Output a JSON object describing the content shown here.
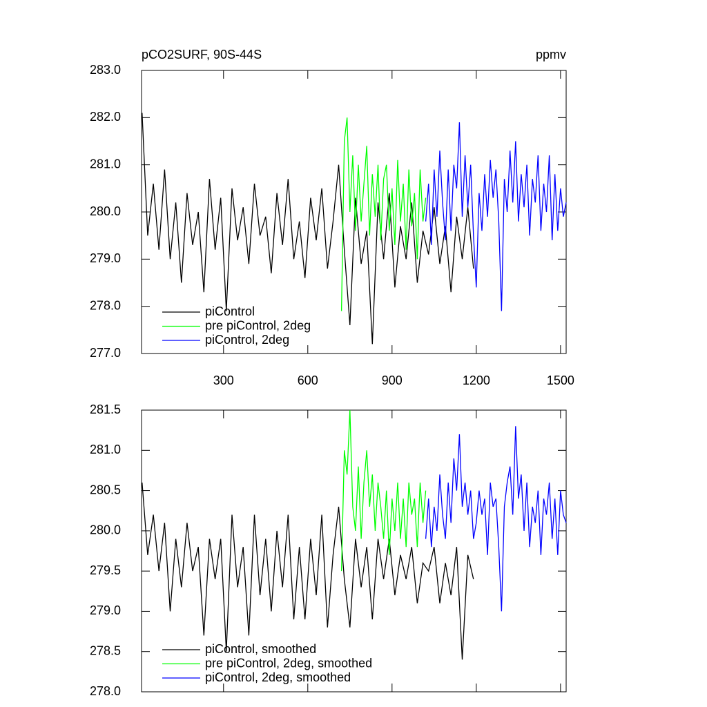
{
  "chart_data": [
    {
      "type": "line",
      "title": "pCO2SURF, 90S-44S",
      "units": "ppmv",
      "xlim": [
        8,
        1520
      ],
      "xticks": [
        300,
        600,
        900,
        1200,
        1500
      ],
      "show_xtick_labels": true,
      "ylim": [
        277,
        283
      ],
      "yticks": [
        {
          "value": 277,
          "label": "277.0"
        },
        {
          "value": 278,
          "label": "278.0"
        },
        {
          "value": 279,
          "label": "279.0"
        },
        {
          "value": 280,
          "label": "280.0"
        },
        {
          "value": 281,
          "label": "281.0"
        },
        {
          "value": 282,
          "label": "282.0"
        },
        {
          "value": 283,
          "label": "283.0"
        }
      ],
      "series": [
        {
          "name": "piControl",
          "color": "#000000",
          "x": [
            10,
            30,
            50,
            70,
            90,
            110,
            130,
            150,
            170,
            190,
            210,
            230,
            250,
            270,
            290,
            310,
            330,
            350,
            370,
            390,
            410,
            430,
            450,
            470,
            490,
            510,
            530,
            550,
            570,
            590,
            610,
            630,
            650,
            670,
            690,
            710,
            730,
            750,
            770,
            790,
            810,
            830,
            850,
            870,
            890,
            910,
            930,
            950,
            970,
            990,
            1010,
            1030,
            1050,
            1070,
            1090,
            1110,
            1130,
            1150,
            1170,
            1190
          ],
          "values": [
            282.1,
            279.5,
            280.6,
            279.2,
            280.9,
            279.0,
            280.2,
            278.5,
            280.4,
            279.3,
            280.0,
            278.3,
            280.7,
            279.2,
            280.3,
            277.9,
            280.5,
            279.4,
            280.1,
            278.9,
            280.6,
            279.5,
            279.9,
            278.7,
            280.4,
            279.3,
            280.7,
            279.0,
            279.8,
            278.6,
            280.3,
            279.4,
            280.5,
            278.8,
            279.8,
            281.0,
            279.2,
            277.6,
            280.3,
            278.9,
            279.6,
            277.2,
            280.2,
            279.0,
            280.4,
            278.4,
            279.7,
            279.0,
            280.2,
            278.5,
            279.6,
            279.1,
            280.1,
            278.9,
            279.7,
            278.3,
            279.9,
            279.0,
            280.1,
            278.8
          ]
        },
        {
          "name": "pre piControl, 2deg",
          "color": "#00ff00",
          "x": [
            720,
            730,
            740,
            750,
            760,
            770,
            780,
            790,
            800,
            810,
            820,
            830,
            840,
            850,
            860,
            870,
            880,
            890,
            900,
            910,
            920,
            930,
            940,
            950,
            960,
            970,
            980,
            990,
            1000,
            1010,
            1020
          ],
          "values": [
            277.9,
            281.5,
            282.0,
            280.0,
            281.2,
            279.6,
            281.0,
            279.8,
            280.6,
            281.4,
            279.5,
            280.8,
            279.9,
            281.0,
            279.4,
            280.7,
            281.0,
            279.6,
            280.5,
            279.3,
            281.1,
            279.8,
            280.6,
            279.2,
            280.9,
            279.7,
            280.4,
            279.0,
            280.9,
            279.8,
            280.3
          ]
        },
        {
          "name": "piControl, 2deg",
          "color": "#0000ff",
          "x": [
            1020,
            1030,
            1040,
            1050,
            1060,
            1070,
            1080,
            1090,
            1100,
            1110,
            1120,
            1130,
            1140,
            1150,
            1160,
            1170,
            1180,
            1190,
            1200,
            1210,
            1220,
            1230,
            1240,
            1250,
            1260,
            1270,
            1280,
            1290,
            1300,
            1310,
            1320,
            1330,
            1340,
            1350,
            1360,
            1370,
            1380,
            1390,
            1400,
            1410,
            1420,
            1430,
            1440,
            1450,
            1460,
            1470,
            1480,
            1490,
            1500,
            1510,
            1520
          ],
          "values": [
            279.8,
            280.6,
            279.3,
            280.9,
            279.9,
            281.3,
            280.2,
            279.4,
            280.9,
            279.6,
            281.0,
            280.5,
            281.9,
            279.9,
            281.2,
            280.1,
            281.0,
            279.5,
            278.4,
            280.4,
            279.6,
            280.8,
            279.9,
            281.1,
            280.3,
            280.9,
            279.8,
            277.9,
            280.7,
            280.0,
            281.3,
            280.2,
            281.5,
            279.8,
            280.8,
            280.1,
            281.0,
            279.5,
            280.7,
            280.2,
            281.2,
            279.6,
            280.6,
            280.0,
            281.2,
            279.4,
            280.8,
            279.6,
            280.5,
            279.9,
            280.2
          ]
        }
      ]
    },
    {
      "type": "line",
      "xlim": [
        8,
        1520
      ],
      "xticks": [
        300,
        600,
        900,
        1200,
        1500
      ],
      "show_xtick_labels": false,
      "ylim": [
        278,
        281.5
      ],
      "yticks": [
        {
          "value": 278,
          "label": "278.0"
        },
        278.5,
        {
          "value": 279,
          "label": "279.0"
        },
        279.5,
        {
          "value": 280,
          "label": "280.0"
        },
        280.5,
        {
          "value": 281,
          "label": "281.0"
        },
        281.5
      ],
      "series": [
        {
          "name": "piControl, smoothed",
          "color": "#000000",
          "x": [
            10,
            30,
            50,
            70,
            90,
            110,
            130,
            150,
            170,
            190,
            210,
            230,
            250,
            270,
            290,
            310,
            330,
            350,
            370,
            390,
            410,
            430,
            450,
            470,
            490,
            510,
            530,
            550,
            570,
            590,
            610,
            630,
            650,
            670,
            690,
            710,
            730,
            750,
            770,
            790,
            810,
            830,
            850,
            870,
            890,
            910,
            930,
            950,
            970,
            990,
            1010,
            1030,
            1050,
            1070,
            1090,
            1110,
            1130,
            1150,
            1170,
            1190
          ],
          "values": [
            280.6,
            279.7,
            280.2,
            279.5,
            280.1,
            279.0,
            279.9,
            279.3,
            280.1,
            279.5,
            279.8,
            278.7,
            279.9,
            279.4,
            279.9,
            278.5,
            280.2,
            279.3,
            279.8,
            278.7,
            280.2,
            279.2,
            279.9,
            279.0,
            280.0,
            279.3,
            280.2,
            278.9,
            279.8,
            278.9,
            279.9,
            279.2,
            280.2,
            278.8,
            279.7,
            280.3,
            279.4,
            278.8,
            279.9,
            279.3,
            279.8,
            278.9,
            279.9,
            279.4,
            279.9,
            279.2,
            279.7,
            279.4,
            279.8,
            279.1,
            279.6,
            279.5,
            279.8,
            279.1,
            279.6,
            279.2,
            279.8,
            278.4,
            279.7,
            279.4
          ]
        },
        {
          "name": "pre piControl, 2deg, smoothed",
          "color": "#00ff00",
          "x": [
            720,
            730,
            740,
            750,
            760,
            770,
            780,
            790,
            800,
            810,
            820,
            830,
            840,
            850,
            860,
            870,
            880,
            890,
            900,
            910,
            920,
            930,
            940,
            950,
            960,
            970,
            980,
            990,
            1000,
            1010,
            1020
          ],
          "values": [
            279.5,
            281.0,
            280.7,
            281.5,
            280.3,
            280.0,
            280.8,
            279.9,
            280.6,
            281.0,
            280.3,
            280.7,
            280.0,
            280.6,
            280.3,
            279.9,
            280.5,
            279.7,
            280.4,
            280.0,
            280.6,
            279.9,
            280.4,
            279.8,
            280.6,
            280.2,
            280.4,
            279.8,
            280.6,
            280.1,
            280.5
          ]
        },
        {
          "name": "piControl, 2deg, smoothed",
          "color": "#0000ff",
          "x": [
            1020,
            1030,
            1040,
            1050,
            1060,
            1070,
            1080,
            1090,
            1100,
            1110,
            1120,
            1130,
            1140,
            1150,
            1160,
            1170,
            1180,
            1190,
            1200,
            1210,
            1220,
            1230,
            1240,
            1250,
            1260,
            1270,
            1280,
            1290,
            1300,
            1310,
            1320,
            1330,
            1340,
            1350,
            1360,
            1370,
            1380,
            1390,
            1400,
            1410,
            1420,
            1430,
            1440,
            1450,
            1460,
            1470,
            1480,
            1490,
            1500,
            1510,
            1520
          ],
          "values": [
            279.9,
            280.4,
            279.8,
            280.3,
            280.0,
            280.7,
            280.2,
            279.9,
            280.6,
            280.1,
            280.9,
            280.5,
            281.2,
            280.3,
            280.6,
            280.2,
            280.5,
            279.9,
            280.1,
            280.5,
            280.2,
            280.4,
            279.7,
            280.6,
            280.3,
            280.4,
            279.8,
            279.0,
            280.3,
            280.6,
            280.8,
            280.2,
            281.3,
            280.4,
            280.7,
            280.0,
            280.6,
            279.8,
            280.3,
            280.1,
            280.5,
            279.7,
            280.4,
            280.2,
            280.6,
            279.9,
            280.4,
            279.7,
            280.5,
            280.2,
            280.1
          ]
        }
      ]
    }
  ]
}
